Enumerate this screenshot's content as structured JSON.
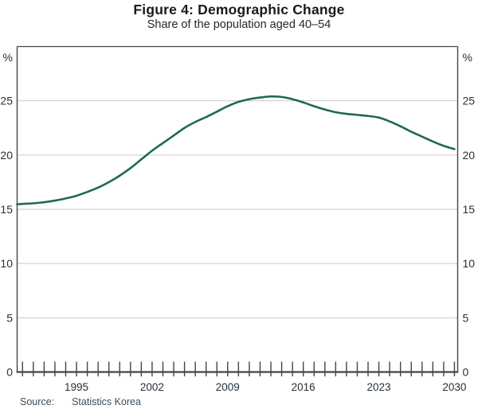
{
  "header": {
    "title": "Figure 4: Demographic Change",
    "subtitle": "Share of the population aged 40–54"
  },
  "footer": {
    "source_label": "Source:",
    "source_value": "Statistics Korea"
  },
  "chart_data": {
    "type": "line",
    "title": "Figure 4: Demographic Change",
    "subtitle": "Share of the population aged 40–54",
    "unit_label": "%",
    "unit_label_position": "top-both-sides",
    "grid": "horizontal",
    "axes_mirrored": true,
    "legend": "none",
    "ylim": [
      0,
      30
    ],
    "y_ticks": [
      0,
      5,
      10,
      15,
      20,
      25
    ],
    "xlim": [
      1989.5,
      2030.3
    ],
    "x_labeled_ticks": [
      1995,
      2002,
      2009,
      2016,
      2023,
      2030
    ],
    "x_minor_range": [
      1990,
      2030
    ],
    "x_minor_step": 1,
    "colors": {
      "line": "#1d6b4f",
      "axis": "#454545",
      "grid": "#c9c9c9",
      "tick_label": "#26313a"
    },
    "series": [
      {
        "name": "Share of the population aged 40–54 (%)",
        "color": "#1d6b4f",
        "points": [
          [
            1989.5,
            15.45
          ],
          [
            1990,
            15.5
          ],
          [
            1991,
            15.55
          ],
          [
            1992,
            15.65
          ],
          [
            1993,
            15.8
          ],
          [
            1994,
            16.0
          ],
          [
            1995,
            16.25
          ],
          [
            1996,
            16.6
          ],
          [
            1997,
            17.0
          ],
          [
            1998,
            17.5
          ],
          [
            1999,
            18.1
          ],
          [
            2000,
            18.8
          ],
          [
            2001,
            19.6
          ],
          [
            2002,
            20.4
          ],
          [
            2003,
            21.1
          ],
          [
            2004,
            21.8
          ],
          [
            2005,
            22.5
          ],
          [
            2006,
            23.05
          ],
          [
            2007,
            23.5
          ],
          [
            2008,
            24.0
          ],
          [
            2009,
            24.5
          ],
          [
            2010,
            24.9
          ],
          [
            2011,
            25.15
          ],
          [
            2012,
            25.3
          ],
          [
            2013,
            25.4
          ],
          [
            2014,
            25.35
          ],
          [
            2015,
            25.15
          ],
          [
            2016,
            24.85
          ],
          [
            2017,
            24.5
          ],
          [
            2018,
            24.2
          ],
          [
            2019,
            23.95
          ],
          [
            2020,
            23.8
          ],
          [
            2021,
            23.7
          ],
          [
            2022,
            23.6
          ],
          [
            2023,
            23.45
          ],
          [
            2024,
            23.1
          ],
          [
            2025,
            22.65
          ],
          [
            2026,
            22.15
          ],
          [
            2027,
            21.7
          ],
          [
            2028,
            21.25
          ],
          [
            2029,
            20.85
          ],
          [
            2030,
            20.55
          ]
        ]
      }
    ]
  }
}
